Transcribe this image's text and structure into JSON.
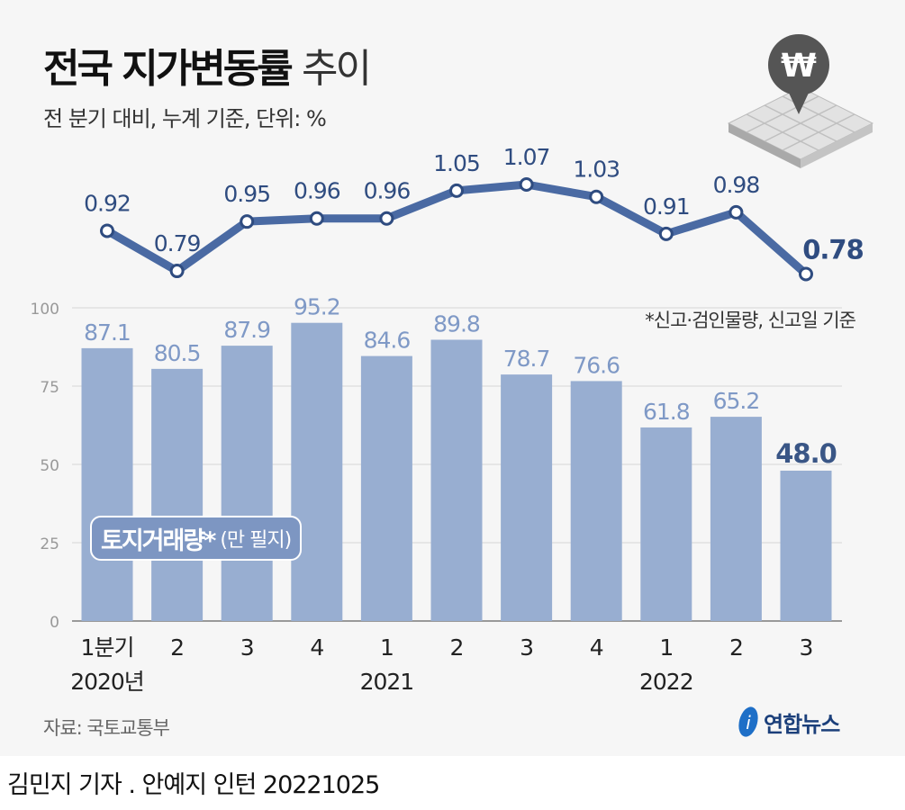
{
  "title_bold": "전국 지가변동률",
  "title_light": "추이",
  "subtitle": "전 분기 대비, 누계 기준, 단위: %",
  "note": "*신고·검인물량, 신고일 기준",
  "source": "자료: 국토교통부",
  "logo_text": "연합뉴스",
  "byline": "김민지 기자 . 안예지 인턴 20221025",
  "legend": {
    "main": "토지거래량*",
    "unit": "(만 필지)"
  },
  "icon": "won-map-pin-icon",
  "colors": {
    "bar": "#98aed1",
    "bar_label": "#7f99c6",
    "line": "#4a6aa3",
    "line_label": "#2f4c80",
    "last_highlight": "#3a5686"
  },
  "chart_data": [
    {
      "type": "line",
      "subtitle": "전 분기 대비, 누계 기준, 단위: %",
      "categories": [
        "1분기",
        "2",
        "3",
        "4",
        "1",
        "2",
        "3",
        "4",
        "1",
        "2",
        "3"
      ],
      "values": [
        0.92,
        0.79,
        0.95,
        0.96,
        0.96,
        1.05,
        1.07,
        1.03,
        0.91,
        0.98,
        0.78
      ],
      "labels": [
        "0.92",
        "0.79",
        "0.95",
        "0.96",
        "0.96",
        "1.05",
        "1.07",
        "1.03",
        "0.91",
        "0.98",
        "0.78"
      ]
    },
    {
      "type": "bar",
      "name": "토지거래량* (만 필지)",
      "categories": [
        "1분기",
        "2",
        "3",
        "4",
        "1",
        "2",
        "3",
        "4",
        "1",
        "2",
        "3"
      ],
      "year_labels": [
        "2020년",
        "2021",
        "2022"
      ],
      "year_label_positions": [
        0,
        4,
        8
      ],
      "values": [
        87.1,
        80.5,
        87.9,
        95.2,
        84.6,
        89.8,
        78.7,
        76.6,
        61.8,
        65.2,
        48.0
      ],
      "labels": [
        "87.1",
        "80.5",
        "87.9",
        "95.2",
        "84.6",
        "89.8",
        "78.7",
        "76.6",
        "61.8",
        "65.2",
        "48.0"
      ],
      "ylim": [
        0,
        100
      ],
      "yticks": [
        "0",
        "25",
        "50",
        "75",
        "100"
      ],
      "grid": true
    }
  ]
}
